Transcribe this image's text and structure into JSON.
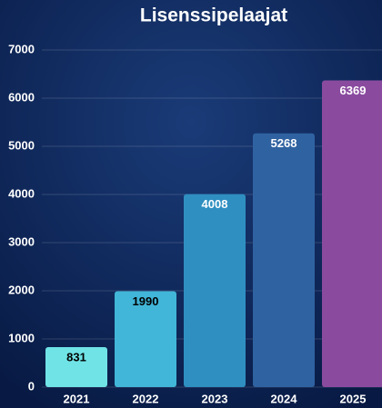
{
  "chart_data": {
    "type": "bar",
    "title": "Lisenssipelaajat",
    "categories": [
      "2021",
      "2022",
      "2023",
      "2024",
      "2025"
    ],
    "values": [
      831,
      1990,
      4008,
      5268,
      6369
    ],
    "colors": [
      "#6fe3e6",
      "#41b6d8",
      "#2f8fc1",
      "#2f62a0",
      "#8a4b9f"
    ],
    "value_label_colors": [
      "#000000",
      "#000000",
      "#ffffff",
      "#ffffff",
      "#ffffff"
    ],
    "ylim": [
      0,
      7000
    ],
    "yticks": [
      0,
      1000,
      2000,
      3000,
      4000,
      5000,
      6000,
      7000
    ],
    "grid": true
  }
}
